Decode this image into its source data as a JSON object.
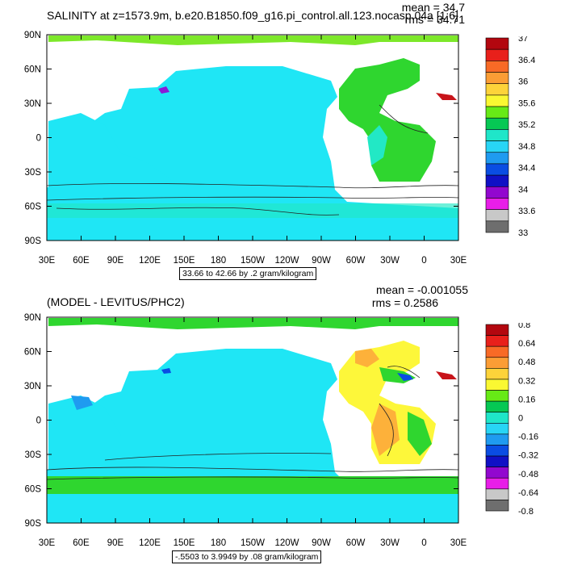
{
  "chart_data": [
    {
      "type": "heatmap",
      "title": "SALINITY at z=1573.9m, b.e20.B1850.f09_g16.pi_control.all.123.nocasp.04a [1:6]",
      "stats": {
        "mean": "mean = 34.7",
        "rms": "rms = 34.71"
      },
      "x_ticks": [
        "30E",
        "60E",
        "90E",
        "120E",
        "150E",
        "180",
        "150W",
        "120W",
        "90W",
        "60W",
        "30W",
        "0",
        "30E"
      ],
      "y_ticks": [
        "90N",
        "60N",
        "30N",
        "0",
        "30S",
        "60S",
        "90S"
      ],
      "contour_info": "33.66 to 42.66 by .2 gram/kilogram",
      "colorbar": {
        "labels": [
          "37",
          "36.4",
          "36",
          "35.6",
          "35.2",
          "34.8",
          "34.4",
          "34",
          "33.6",
          "33"
        ],
        "colors": [
          "#b3070f",
          "#e8201b",
          "#f86a26",
          "#fb9d35",
          "#fdd33a",
          "#faf832",
          "#67ea16",
          "#06c854",
          "#1fe6c9",
          "#28d5f5",
          "#1f9bf0",
          "#0a4de3",
          "#1010c5",
          "#9207cf",
          "#e81ee8",
          "#c8c8c8",
          "#6e6e6e"
        ]
      }
    },
    {
      "type": "heatmap",
      "title": "(MODEL - LEVITUS/PHC2)",
      "stats": {
        "mean": "mean = -0.001055",
        "rms": "rms = 0.2586"
      },
      "x_ticks": [
        "30E",
        "60E",
        "90E",
        "120E",
        "150E",
        "180",
        "150W",
        "120W",
        "90W",
        "60W",
        "30W",
        "0",
        "30E"
      ],
      "y_ticks": [
        "90N",
        "60N",
        "30N",
        "0",
        "30S",
        "60S",
        "90S"
      ],
      "contour_info": "-.5503 to 3.9949 by .08 gram/kilogram",
      "colorbar": {
        "labels": [
          "0.8",
          "0.64",
          "0.48",
          "0.32",
          "0.16",
          "0",
          "-0.16",
          "-0.32",
          "-0.48",
          "-0.64",
          "-0.8"
        ],
        "colors": [
          "#b3070f",
          "#e8201b",
          "#f86a26",
          "#fb9d35",
          "#fdd33a",
          "#faf832",
          "#67ea16",
          "#06c854",
          "#1fe6c9",
          "#28d5f5",
          "#1f9bf0",
          "#0a4de3",
          "#1010c5",
          "#9207cf",
          "#e81ee8",
          "#c8c8c8",
          "#6e6e6e"
        ]
      }
    }
  ],
  "ocean_colors": {
    "cyan": "#1fe6f5",
    "green": "#2fd62f",
    "lime": "#7de82a",
    "yellow": "#fdf73a",
    "orange": "#fdb13a",
    "aquamarine": "#22e8c5",
    "blue": "#0a4de3",
    "purple": "#8a1cd6",
    "red": "#c8141a"
  }
}
